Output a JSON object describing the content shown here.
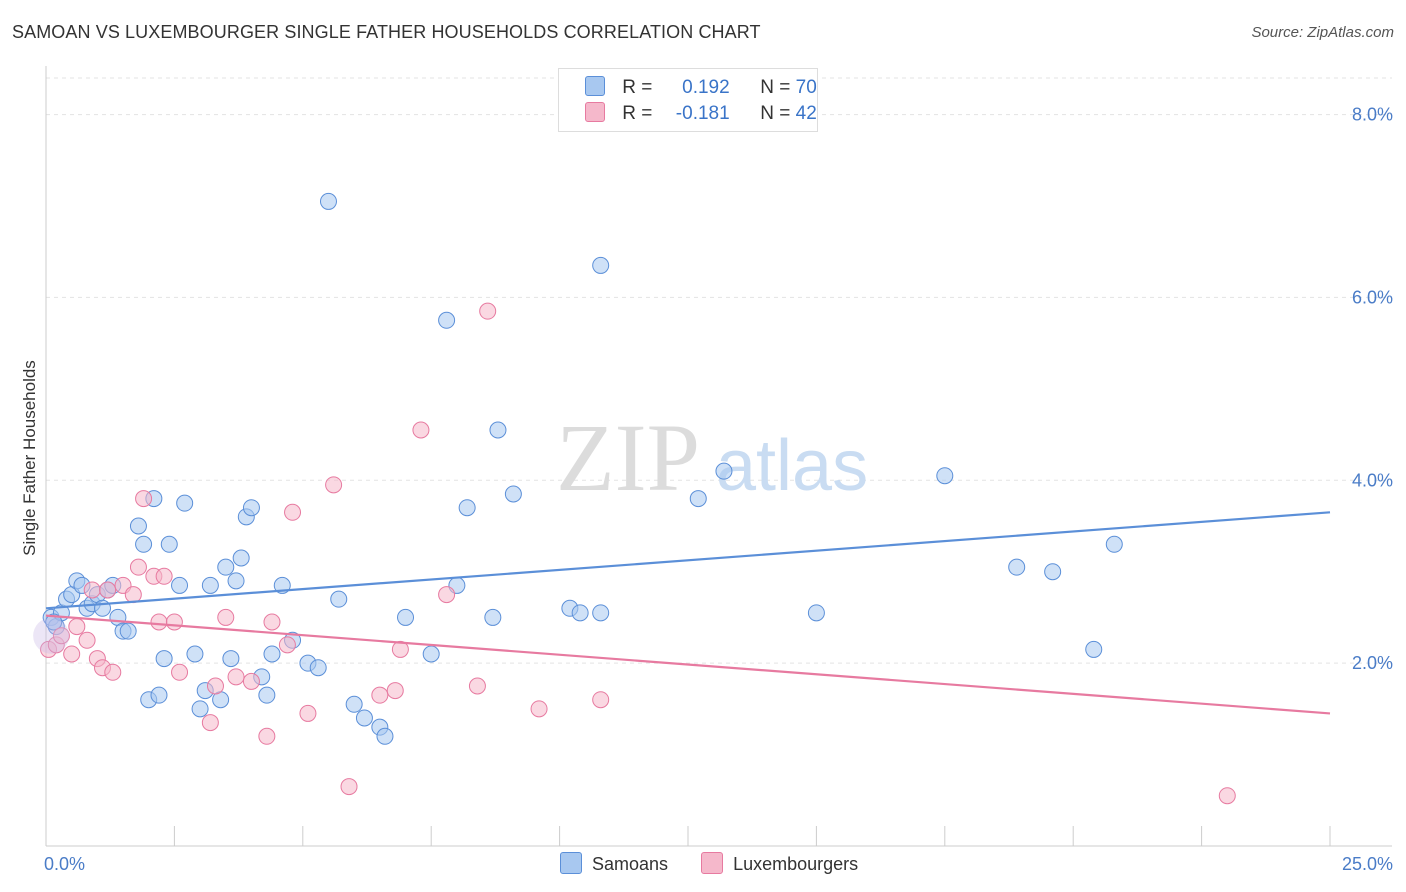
{
  "title": "SAMOAN VS LUXEMBOURGER SINGLE FATHER HOUSEHOLDS CORRELATION CHART",
  "source": "Source: ZipAtlas.com",
  "watermark": {
    "zip": "ZIP",
    "atlas": "atlas"
  },
  "legend": {
    "rows": [
      {
        "r_label": "R =",
        "r_value": "0.192",
        "n_label": "N =",
        "n_value": "70",
        "color": "#a8c8f0"
      },
      {
        "r_label": "R =",
        "r_value": "-0.181",
        "n_label": "N =",
        "n_value": "42",
        "color": "#f5b8cb"
      }
    ]
  },
  "bottom_legend": [
    {
      "label": "Samoans",
      "color": "#a8c8f0"
    },
    {
      "label": "Luxembourgers",
      "color": "#f5b8cb"
    }
  ],
  "chart_data": {
    "type": "scatter",
    "ylabel": "Single Father Households",
    "xlim": [
      0,
      25
    ],
    "ylim": [
      0,
      8.4
    ],
    "x_ticks": [
      {
        "value": 0,
        "label": "0.0%"
      },
      {
        "value": 25,
        "label": "25.0%"
      }
    ],
    "y_ticks": [
      {
        "value": 2,
        "label": "2.0%"
      },
      {
        "value": 4,
        "label": "4.0%"
      },
      {
        "value": 6,
        "label": "6.0%"
      },
      {
        "value": 8,
        "label": "8.0%"
      }
    ],
    "grid": "horizontal dashed",
    "series": [
      {
        "name": "Samoans",
        "color": "#5b8fd8",
        "fill": "#a8c8f0",
        "trend": {
          "x": [
            0,
            25
          ],
          "y": [
            2.6,
            3.65
          ]
        },
        "points": [
          [
            0.1,
            2.5
          ],
          [
            0.2,
            2.4
          ],
          [
            0.3,
            2.55
          ],
          [
            0.4,
            2.7
          ],
          [
            0.5,
            2.75
          ],
          [
            0.6,
            2.9
          ],
          [
            0.7,
            2.85
          ],
          [
            0.8,
            2.6
          ],
          [
            0.9,
            2.65
          ],
          [
            1.0,
            2.75
          ],
          [
            1.1,
            2.6
          ],
          [
            1.2,
            2.8
          ],
          [
            1.3,
            2.85
          ],
          [
            1.4,
            2.5
          ],
          [
            1.5,
            2.35
          ],
          [
            1.6,
            2.35
          ],
          [
            1.8,
            3.5
          ],
          [
            1.9,
            3.3
          ],
          [
            2.0,
            1.6
          ],
          [
            2.1,
            3.8
          ],
          [
            2.2,
            1.65
          ],
          [
            2.3,
            2.05
          ],
          [
            2.4,
            3.3
          ],
          [
            2.6,
            2.85
          ],
          [
            2.7,
            3.75
          ],
          [
            2.9,
            2.1
          ],
          [
            3.0,
            1.5
          ],
          [
            3.1,
            1.7
          ],
          [
            3.2,
            2.85
          ],
          [
            3.4,
            1.6
          ],
          [
            3.5,
            3.05
          ],
          [
            3.6,
            2.05
          ],
          [
            3.7,
            2.9
          ],
          [
            3.8,
            3.15
          ],
          [
            3.9,
            3.6
          ],
          [
            4.0,
            3.7
          ],
          [
            4.2,
            1.85
          ],
          [
            4.3,
            1.65
          ],
          [
            4.4,
            2.1
          ],
          [
            4.6,
            2.85
          ],
          [
            4.8,
            2.25
          ],
          [
            5.1,
            2.0
          ],
          [
            5.3,
            1.95
          ],
          [
            5.5,
            7.05
          ],
          [
            5.7,
            2.7
          ],
          [
            6.0,
            1.55
          ],
          [
            6.2,
            1.4
          ],
          [
            6.5,
            1.3
          ],
          [
            6.6,
            1.2
          ],
          [
            7.0,
            2.5
          ],
          [
            7.5,
            2.1
          ],
          [
            7.8,
            5.75
          ],
          [
            8.0,
            2.85
          ],
          [
            8.2,
            3.7
          ],
          [
            8.7,
            2.5
          ],
          [
            8.8,
            4.55
          ],
          [
            9.1,
            3.85
          ],
          [
            10.2,
            2.6
          ],
          [
            10.4,
            2.55
          ],
          [
            10.8,
            6.35
          ],
          [
            10.8,
            2.55
          ],
          [
            12.7,
            3.8
          ],
          [
            13.2,
            4.1
          ],
          [
            15.0,
            2.55
          ],
          [
            17.5,
            4.05
          ],
          [
            18.9,
            3.05
          ],
          [
            19.6,
            3.0
          ],
          [
            20.4,
            2.15
          ],
          [
            20.8,
            3.3
          ],
          [
            0.15,
            2.45
          ]
        ]
      },
      {
        "name": "Luxembourgers",
        "color": "#e77aa0",
        "fill": "#f5b8cb",
        "trend": {
          "x": [
            0,
            25
          ],
          "y": [
            2.52,
            1.45
          ]
        },
        "points": [
          [
            0.05,
            2.15
          ],
          [
            0.2,
            2.2
          ],
          [
            0.3,
            2.3
          ],
          [
            0.5,
            2.1
          ],
          [
            0.6,
            2.4
          ],
          [
            0.8,
            2.25
          ],
          [
            0.9,
            2.8
          ],
          [
            1.0,
            2.05
          ],
          [
            1.1,
            1.95
          ],
          [
            1.2,
            2.8
          ],
          [
            1.3,
            1.9
          ],
          [
            1.5,
            2.85
          ],
          [
            1.7,
            2.75
          ],
          [
            1.8,
            3.05
          ],
          [
            1.9,
            3.8
          ],
          [
            2.1,
            2.95
          ],
          [
            2.2,
            2.45
          ],
          [
            2.3,
            2.95
          ],
          [
            2.5,
            2.45
          ],
          [
            2.6,
            1.9
          ],
          [
            3.2,
            1.35
          ],
          [
            3.3,
            1.75
          ],
          [
            3.5,
            2.5
          ],
          [
            3.7,
            1.85
          ],
          [
            4.0,
            1.8
          ],
          [
            4.3,
            1.2
          ],
          [
            4.4,
            2.45
          ],
          [
            4.7,
            2.2
          ],
          [
            4.8,
            3.65
          ],
          [
            5.1,
            1.45
          ],
          [
            5.6,
            3.95
          ],
          [
            5.9,
            0.65
          ],
          [
            6.5,
            1.65
          ],
          [
            6.8,
            1.7
          ],
          [
            6.9,
            2.15
          ],
          [
            7.3,
            4.55
          ],
          [
            7.8,
            2.75
          ],
          [
            8.4,
            1.75
          ],
          [
            8.6,
            5.85
          ],
          [
            9.6,
            1.5
          ],
          [
            10.8,
            1.6
          ],
          [
            23.0,
            0.55
          ]
        ]
      }
    ]
  }
}
